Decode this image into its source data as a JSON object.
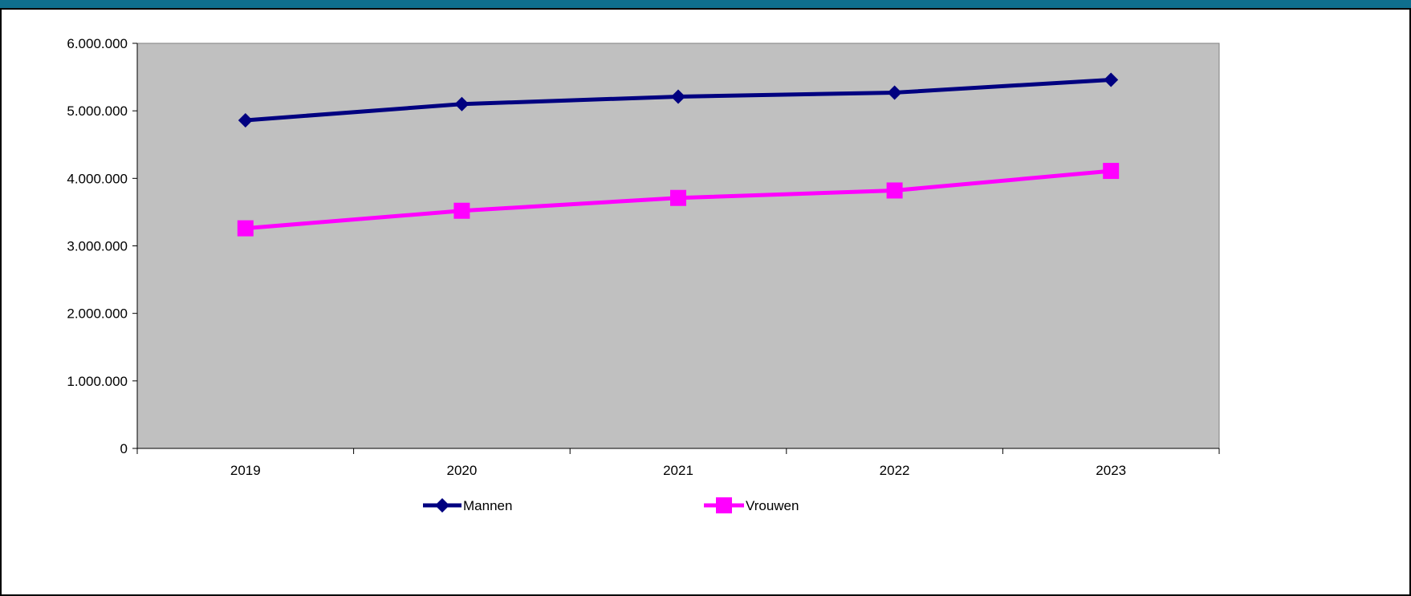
{
  "colors": {
    "top_band": "#0f6f8e",
    "frame": "#000000",
    "plot_area": "#c0c0c0",
    "series_mannen": "#000080",
    "series_vrouwen": "#ff00ff"
  },
  "chart_data": {
    "type": "line",
    "categories": [
      "2019",
      "2020",
      "2021",
      "2022",
      "2023"
    ],
    "series": [
      {
        "name": "Mannen",
        "marker": "diamond",
        "values": [
          4860000,
          5100000,
          5210000,
          5270000,
          5460000
        ]
      },
      {
        "name": "Vrouwen",
        "marker": "square",
        "values": [
          3260000,
          3520000,
          3710000,
          3820000,
          4110000
        ]
      }
    ],
    "ylim": [
      0,
      6000000
    ],
    "yticks": [
      0,
      1000000,
      2000000,
      3000000,
      4000000,
      5000000,
      6000000
    ],
    "ytick_labels": [
      "0",
      "1.000.000",
      "2.000.000",
      "3.000.000",
      "4.000.000",
      "5.000.000",
      "6.000.000"
    ],
    "title": "",
    "xlabel": "",
    "ylabel": "",
    "grid": false,
    "legend_position": "bottom"
  }
}
